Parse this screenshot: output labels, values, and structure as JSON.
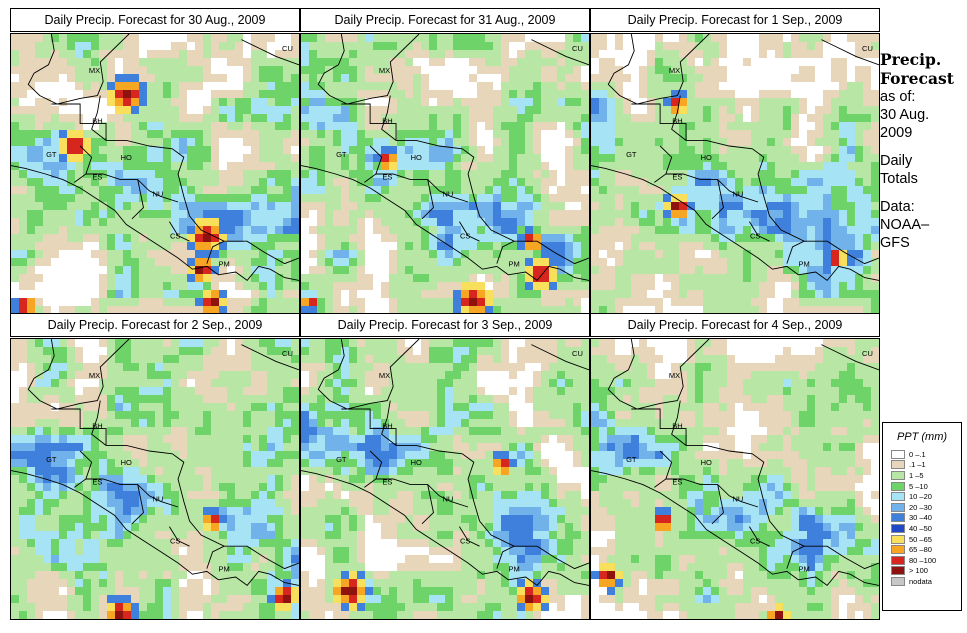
{
  "panels": [
    {
      "title": "Daily Precip. Forecast for  30 Aug., 2009",
      "seed": 3,
      "hot": [
        [
          0.4,
          0.22,
          0.07
        ],
        [
          0.68,
          0.72,
          0.07
        ],
        [
          0.66,
          0.84,
          0.05
        ],
        [
          0.22,
          0.4,
          0.06
        ],
        [
          0.7,
          0.96,
          0.05
        ],
        [
          0.05,
          0.97,
          0.04
        ]
      ]
    },
    {
      "title": "Daily Precip. Forecast for  31 Aug., 2009",
      "seed": 11,
      "hot": [
        [
          0.6,
          0.95,
          0.07
        ],
        [
          0.83,
          0.86,
          0.06
        ],
        [
          0.3,
          0.45,
          0.04
        ],
        [
          0.8,
          0.74,
          0.04
        ],
        [
          0.03,
          0.96,
          0.03
        ]
      ]
    },
    {
      "title": "Daily Precip. Forecast for  1 Sep., 2009",
      "seed": 19,
      "hot": [
        [
          0.3,
          0.62,
          0.05
        ],
        [
          0.85,
          0.8,
          0.04
        ],
        [
          0.3,
          0.25,
          0.04
        ]
      ]
    },
    {
      "title": "Daily Precip. Forecast for  2 Sep., 2009",
      "seed": 27,
      "hot": [
        [
          0.38,
          0.98,
          0.06
        ],
        [
          0.95,
          0.92,
          0.05
        ],
        [
          0.7,
          0.65,
          0.04
        ]
      ]
    },
    {
      "title": "Daily Precip. Forecast for  3 Sep., 2009",
      "seed": 35,
      "hot": [
        [
          0.17,
          0.9,
          0.07
        ],
        [
          0.8,
          0.92,
          0.06
        ],
        [
          0.7,
          0.45,
          0.04
        ]
      ]
    },
    {
      "title": "Daily Precip. Forecast for  4 Sep., 2009",
      "seed": 43,
      "hot": [
        [
          0.06,
          0.85,
          0.05
        ],
        [
          0.65,
          0.99,
          0.04
        ],
        [
          0.25,
          0.65,
          0.04
        ]
      ]
    }
  ],
  "countries": [
    "MX",
    "BH",
    "GT",
    "HO",
    "ES",
    "NU",
    "CS",
    "PM",
    "CU"
  ],
  "sidebar": {
    "title": "Precip.\nForecast",
    "as_of": "as of:\n30 Aug.\n2009",
    "totals": "Daily\nTotals",
    "source": "Data:\nNOAA–\nGFS"
  },
  "legend": {
    "title": "PPT (mm)",
    "items": [
      {
        "label": "0 –.1",
        "color": "#ffffff"
      },
      {
        "label": ".1 –1",
        "color": "#e8d6bb"
      },
      {
        "label": "1 –5",
        "color": "#b8e6a4"
      },
      {
        "label": "5 –10",
        "color": "#6ed46a"
      },
      {
        "label": "10 –20",
        "color": "#a6e4f5"
      },
      {
        "label": "20 –30",
        "color": "#72b2ea"
      },
      {
        "label": "30 –40",
        "color": "#3f80dc"
      },
      {
        "label": "40 –50",
        "color": "#1f49c8"
      },
      {
        "label": "50 –65",
        "color": "#f8df5c"
      },
      {
        "label": "65 –80",
        "color": "#f6a623"
      },
      {
        "label": "80 –100",
        "color": "#d7261d"
      },
      {
        "label": "> 100",
        "color": "#8e120e"
      },
      {
        "label": "nodata",
        "color": "#c7c7c7"
      }
    ]
  }
}
